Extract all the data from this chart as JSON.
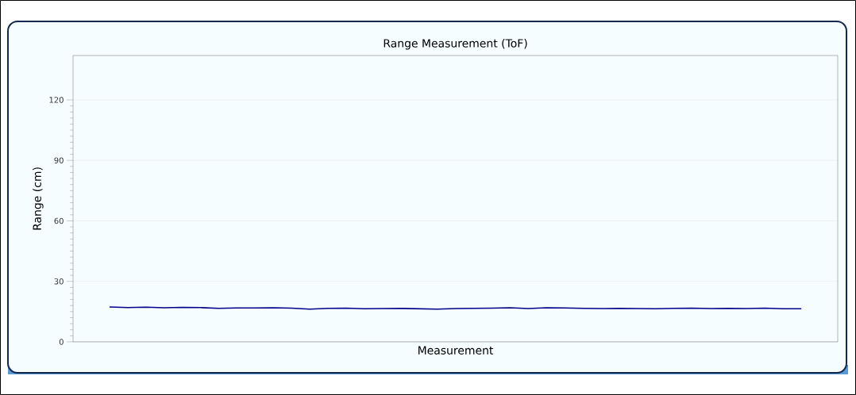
{
  "chart_data": {
    "type": "line",
    "title": "Range Measurement (ToF)",
    "xlabel": "Measurement",
    "ylabel": "Range (cm)",
    "categories": [
      null,
      null,
      null,
      null,
      null,
      null,
      null,
      null,
      null,
      null,
      null,
      null,
      null,
      null,
      null,
      null,
      null,
      null,
      null,
      null,
      null,
      null,
      null,
      null,
      null,
      null,
      null,
      null,
      null,
      null,
      null,
      null,
      null,
      null,
      null,
      null,
      null,
      null,
      null
    ],
    "series": [
      {
        "color": "#00008b",
        "values": [
          17.3,
          17.0,
          17.2,
          16.9,
          17.1,
          17.0,
          16.6,
          16.8,
          16.8,
          16.9,
          16.7,
          16.2,
          16.6,
          16.7,
          16.4,
          16.5,
          16.6,
          16.4,
          16.2,
          16.5,
          16.6,
          16.7,
          16.9,
          16.5,
          16.9,
          16.8,
          16.6,
          16.5,
          16.6,
          16.5,
          16.4,
          16.6,
          16.7,
          16.5,
          16.6,
          16.5,
          16.7,
          16.4,
          16.4
        ]
      }
    ],
    "ylim": [
      0,
      142
    ],
    "yticks": [
      0,
      30,
      60,
      90,
      120
    ],
    "grid": "y",
    "marker": "none",
    "line_style": "solid"
  }
}
